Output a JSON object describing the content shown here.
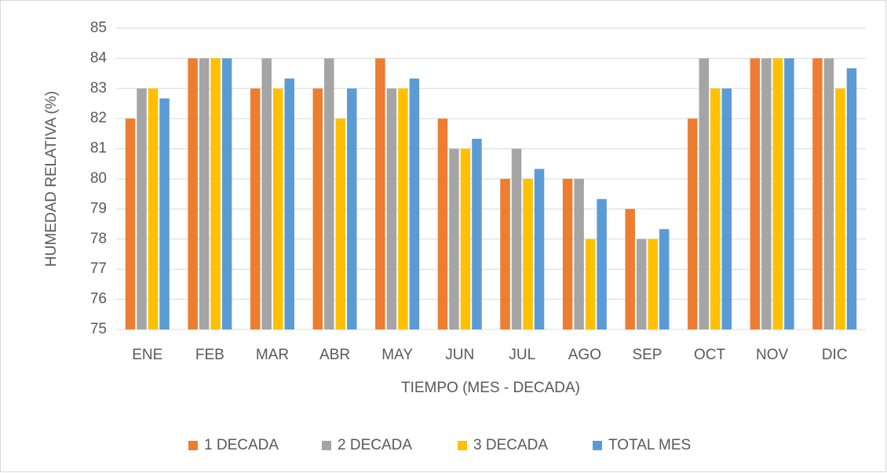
{
  "chart_data": {
    "type": "bar",
    "xlabel": "TIEMPO (MES - DECADA)",
    "ylabel": "HUMEDAD RELATIVA (%)",
    "categories": [
      "ENE",
      "FEB",
      "MAR",
      "ABR",
      "MAY",
      "JUN",
      "JUL",
      "AGO",
      "SEP",
      "OCT",
      "NOV",
      "DIC"
    ],
    "series": [
      {
        "name": "1 DECADA",
        "color": "#ed7d31",
        "values": [
          82,
          84,
          83,
          83,
          84,
          82,
          80,
          80,
          79,
          82,
          84,
          84
        ]
      },
      {
        "name": "2 DECADA",
        "color": "#a5a5a5",
        "values": [
          83,
          84,
          84,
          84,
          83,
          81,
          81,
          80,
          78,
          84,
          84,
          84
        ]
      },
      {
        "name": "3 DECADA",
        "color": "#ffc000",
        "values": [
          83,
          84,
          83,
          82,
          83,
          81,
          80,
          78,
          78,
          83,
          84,
          83
        ]
      },
      {
        "name": "TOTAL MES",
        "color": "#5b9bd5",
        "values": [
          82.67,
          84,
          83.33,
          83,
          83.33,
          81.33,
          80.33,
          79.33,
          78.33,
          83,
          84,
          83.67
        ]
      }
    ],
    "ylim": [
      75,
      85
    ],
    "yticks": [
      75,
      76,
      77,
      78,
      79,
      80,
      81,
      82,
      83,
      84,
      85
    ],
    "grid": true,
    "legend": "bottom"
  }
}
